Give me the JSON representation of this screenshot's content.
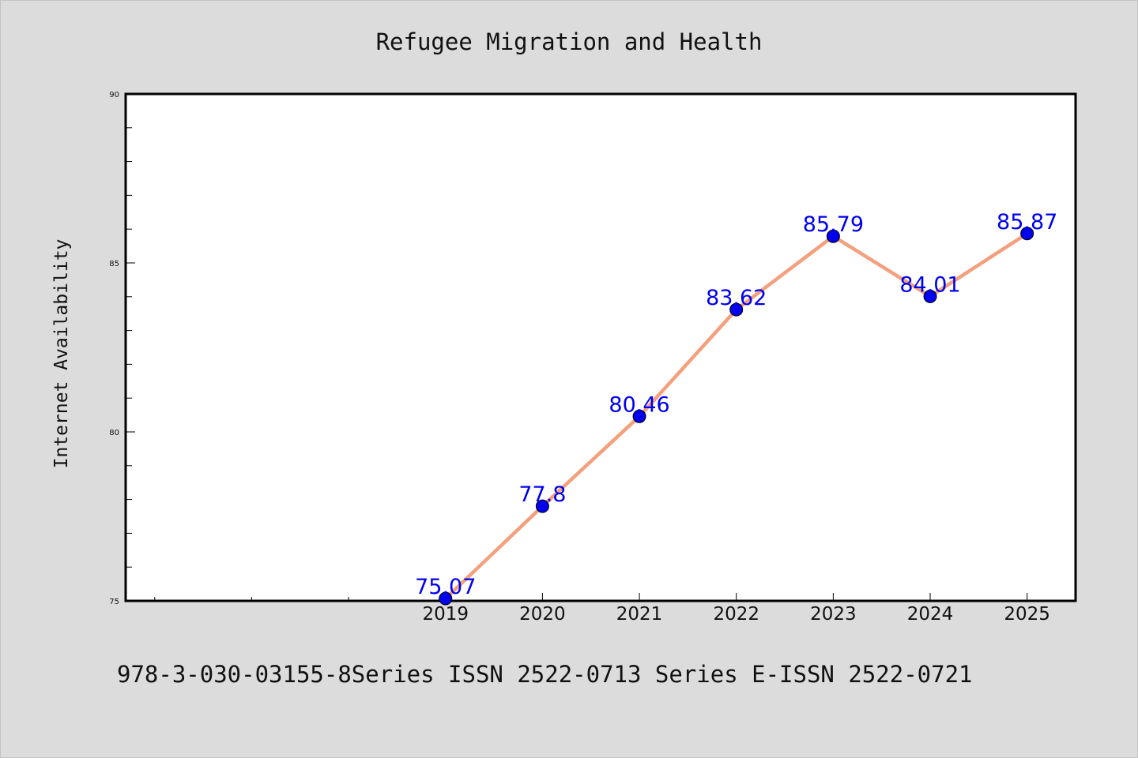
{
  "chart_data": {
    "type": "line",
    "title": "Refugee Migration and Health",
    "xlabel": "",
    "ylabel": "Internet Availability",
    "x": [
      2019,
      2020,
      2021,
      2022,
      2023,
      2024,
      2025
    ],
    "xlim": [
      2015.7,
      2025.5
    ],
    "ylim": [
      75,
      90
    ],
    "y_ticks": [
      75,
      80,
      85,
      90
    ],
    "y_minor_step": 1,
    "x_minor_ticks": [
      2016,
      2017,
      2018
    ],
    "series": [
      {
        "name": "",
        "values": [
          75.07,
          77.8,
          80.46,
          83.62,
          85.79,
          84.01,
          85.87
        ],
        "labels": [
          "75.07",
          "77.8",
          "80.46",
          "83.62",
          "85.79",
          "84.01",
          "85.87"
        ],
        "line_color": "#f4a07e",
        "marker_color": "#0000ee",
        "label_color": "#0000ee"
      }
    ],
    "grid": false,
    "legend": "none",
    "background": "#ffffff",
    "figure_background": "#dcdcdc"
  },
  "footer": {
    "text": "978-3-030-03155-8Series ISSN 2522-0713 Series E-ISSN 2522-0721"
  }
}
